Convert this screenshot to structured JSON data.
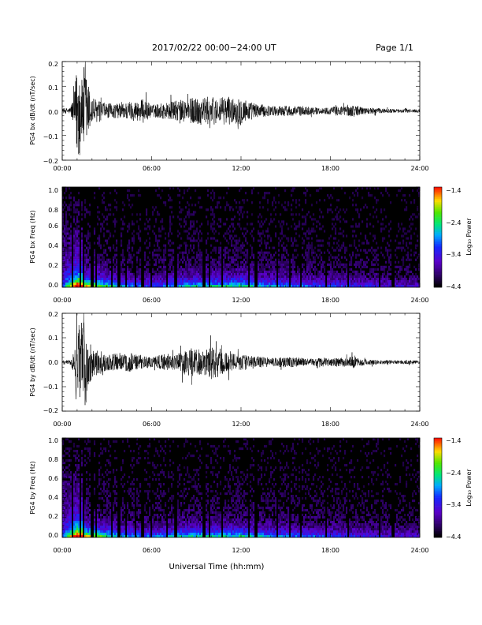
{
  "header": {
    "title": "2017/02/22  00:00−24:00 UT",
    "page": "Page 1/1"
  },
  "xaxis_label": "Universal Time (hh:mm)",
  "colors": {
    "trace": "#000000",
    "spec_bg": "#000000"
  },
  "chart_data": [
    {
      "type": "line",
      "ylabel": "PG4 bx dB/dt (nT/sec)",
      "xlim_hours": [
        0,
        24
      ],
      "ylim": [
        -0.2,
        0.2
      ],
      "x_ticks": [
        "00:00",
        "06:00",
        "12:00",
        "18:00",
        "24:00"
      ],
      "y_ticks": [
        "0.2",
        "0.1",
        "0.0",
        "−0.1",
        "−0.2"
      ],
      "envelope": {
        "hours": [
          0,
          0.5,
          0.8,
          1.0,
          1.1,
          1.3,
          1.5,
          1.8,
          2.0,
          2.5,
          3,
          3.5,
          4,
          4.5,
          5,
          5.5,
          6,
          6.5,
          7,
          7.5,
          8,
          8.5,
          9,
          9.5,
          10,
          10.5,
          11,
          11.5,
          12,
          12.5,
          13,
          13.5,
          14,
          14.5,
          15,
          15.5,
          16,
          16.5,
          17,
          17.5,
          18,
          18.5,
          19,
          19.5,
          20,
          20.5,
          21,
          21.5,
          22,
          22.5,
          23,
          23.5,
          24
        ],
        "amplitude": [
          0.01,
          0.012,
          0.06,
          0.2,
          0.22,
          0.12,
          0.2,
          0.1,
          0.06,
          0.04,
          0.03,
          0.03,
          0.03,
          0.04,
          0.04,
          0.05,
          0.025,
          0.03,
          0.035,
          0.04,
          0.045,
          0.05,
          0.06,
          0.055,
          0.06,
          0.05,
          0.06,
          0.05,
          0.06,
          0.04,
          0.03,
          0.025,
          0.02,
          0.02,
          0.022,
          0.02,
          0.02,
          0.018,
          0.015,
          0.012,
          0.015,
          0.02,
          0.02,
          0.025,
          0.018,
          0.012,
          0.012,
          0.01,
          0.008,
          0.008,
          0.008,
          0.008,
          0.007
        ]
      }
    },
    {
      "type": "heatmap",
      "ylabel": "PG4 bx Freq (Hz)",
      "xlim_hours": [
        0,
        24
      ],
      "ylim": [
        0.0,
        1.0
      ],
      "x_ticks": [
        "00:00",
        "06:00",
        "12:00",
        "18:00",
        "24:00"
      ],
      "y_ticks": [
        "1.0",
        "0.8",
        "0.6",
        "0.4",
        "0.2",
        "0.0"
      ],
      "colorbar": {
        "label": "Log₁₀ Power",
        "range": [
          -4.4,
          -1.4
        ],
        "ticks": [
          "−1.4",
          "−2.4",
          "−3.4",
          "−4.4"
        ]
      },
      "gap_hours": [
        0.7,
        1.25,
        1.45,
        2.0,
        2.3,
        3.3,
        3.8,
        4.3,
        4.9,
        5.4,
        6.0,
        7.0,
        7.6,
        9.5,
        9.9,
        10.7,
        12.5,
        13.0,
        14.4,
        15.3,
        16.0,
        17.7,
        19.2,
        21.3,
        22.2
      ],
      "activity": {
        "hours": [
          0,
          1,
          2,
          4,
          6,
          8,
          10,
          12,
          14,
          16,
          18,
          20,
          22,
          24
        ],
        "level": [
          0.2,
          1.0,
          0.8,
          0.5,
          0.4,
          0.55,
          0.6,
          0.65,
          0.5,
          0.45,
          0.4,
          0.35,
          0.3,
          0.25
        ]
      }
    },
    {
      "type": "line",
      "ylabel": "PG4 by dB/dt (nT/sec)",
      "xlim_hours": [
        0,
        24
      ],
      "ylim": [
        -0.2,
        0.2
      ],
      "x_ticks": [
        "00:00",
        "06:00",
        "12:00",
        "18:00",
        "24:00"
      ],
      "y_ticks": [
        "0.2",
        "0.1",
        "0.0",
        "−0.1",
        "−0.2"
      ],
      "envelope": {
        "hours": [
          0,
          0.5,
          0.8,
          1.0,
          1.1,
          1.3,
          1.5,
          1.8,
          2.0,
          2.5,
          3,
          3.5,
          4,
          4.5,
          5,
          5.5,
          6,
          6.5,
          7,
          7.5,
          8,
          8.5,
          9,
          9.5,
          10,
          10.5,
          11,
          11.5,
          12,
          12.5,
          13,
          13.5,
          14,
          14.5,
          15,
          15.5,
          16,
          16.5,
          17,
          17.5,
          18,
          18.5,
          19,
          19.5,
          20,
          20.5,
          21,
          21.5,
          22,
          22.5,
          23,
          23.5,
          24
        ],
        "amplitude": [
          0.008,
          0.01,
          0.05,
          0.2,
          0.18,
          0.12,
          0.2,
          0.1,
          0.06,
          0.05,
          0.035,
          0.035,
          0.035,
          0.04,
          0.03,
          0.03,
          0.02,
          0.03,
          0.035,
          0.03,
          0.045,
          0.06,
          0.06,
          0.05,
          0.07,
          0.06,
          0.045,
          0.035,
          0.035,
          0.03,
          0.025,
          0.022,
          0.018,
          0.02,
          0.022,
          0.02,
          0.018,
          0.015,
          0.015,
          0.02,
          0.015,
          0.02,
          0.018,
          0.025,
          0.015,
          0.012,
          0.01,
          0.01,
          0.008,
          0.008,
          0.008,
          0.008,
          0.007
        ]
      }
    },
    {
      "type": "heatmap",
      "ylabel": "PG4 by Freq (Hz)",
      "xlim_hours": [
        0,
        24
      ],
      "ylim": [
        0.0,
        1.0
      ],
      "x_ticks": [
        "00:00",
        "06:00",
        "12:00",
        "18:00",
        "24:00"
      ],
      "y_ticks": [
        "1.0",
        "0.8",
        "0.6",
        "0.4",
        "0.2",
        "0.0"
      ],
      "colorbar": {
        "label": "Log₁₀ Power",
        "range": [
          -4.4,
          -1.4
        ],
        "ticks": [
          "−1.4",
          "−2.4",
          "−3.4",
          "−4.4"
        ]
      },
      "gap_hours": [
        0.7,
        1.25,
        1.45,
        2.0,
        2.3,
        3.3,
        3.8,
        4.3,
        4.9,
        5.4,
        6.0,
        7.0,
        7.6,
        9.5,
        9.9,
        10.7,
        12.5,
        13.0,
        14.4,
        15.3,
        16.0,
        17.7,
        19.2,
        21.3,
        22.2
      ],
      "activity": {
        "hours": [
          0,
          1,
          2,
          4,
          6,
          8,
          10,
          12,
          14,
          16,
          18,
          20,
          22,
          24
        ],
        "level": [
          0.2,
          1.0,
          0.8,
          0.55,
          0.45,
          0.6,
          0.6,
          0.6,
          0.5,
          0.45,
          0.4,
          0.35,
          0.3,
          0.25
        ]
      }
    }
  ]
}
